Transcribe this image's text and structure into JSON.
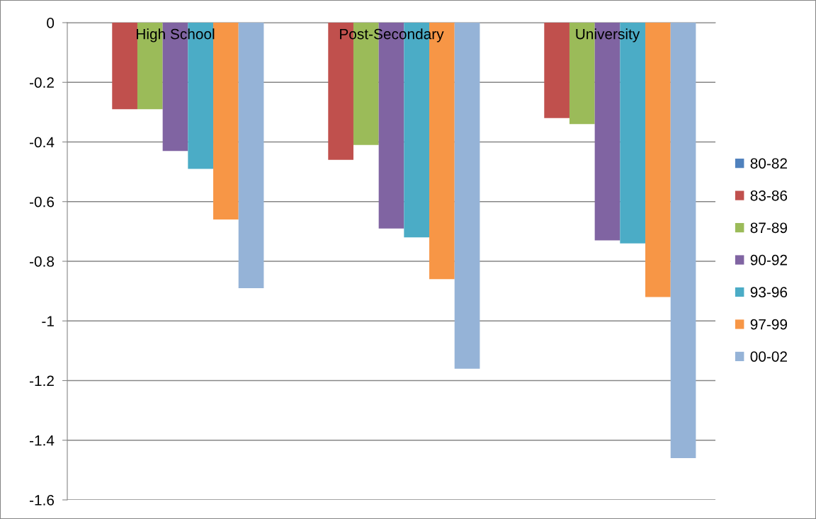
{
  "chart_data": {
    "type": "bar",
    "categories": [
      "High School",
      "Post-Secondary",
      "University"
    ],
    "series": [
      {
        "name": "80-82",
        "color": "#4f81bd",
        "values": [
          0,
          0,
          0
        ]
      },
      {
        "name": "83-86",
        "color": "#c0504d",
        "values": [
          -0.29,
          -0.46,
          -0.32
        ]
      },
      {
        "name": "87-89",
        "color": "#9bbb59",
        "values": [
          -0.29,
          -0.41,
          -0.34
        ]
      },
      {
        "name": "90-92",
        "color": "#8064a2",
        "values": [
          -0.43,
          -0.69,
          -0.73
        ]
      },
      {
        "name": "93-96",
        "color": "#4bacc6",
        "values": [
          -0.49,
          -0.72,
          -0.74
        ]
      },
      {
        "name": "97-99",
        "color": "#f79646",
        "values": [
          -0.66,
          -0.86,
          -0.92
        ]
      },
      {
        "name": "00-02",
        "color": "#95b3d7",
        "values": [
          -0.89,
          -1.16,
          -1.46
        ]
      }
    ],
    "ylim": [
      -1.6,
      0
    ],
    "yticks": [
      {
        "value": -1.6,
        "label": "-1.6"
      },
      {
        "value": -1.4,
        "label": "-1.4"
      },
      {
        "value": -1.2,
        "label": "-1.2"
      },
      {
        "value": -1,
        "label": "-1"
      },
      {
        "value": -0.8,
        "label": "-0.8"
      },
      {
        "value": -0.6,
        "label": "-0.6"
      },
      {
        "value": -0.4,
        "label": "-0.4"
      },
      {
        "value": -0.2,
        "label": "-0.2"
      },
      0
    ],
    "grid": "y",
    "legend": "right"
  }
}
